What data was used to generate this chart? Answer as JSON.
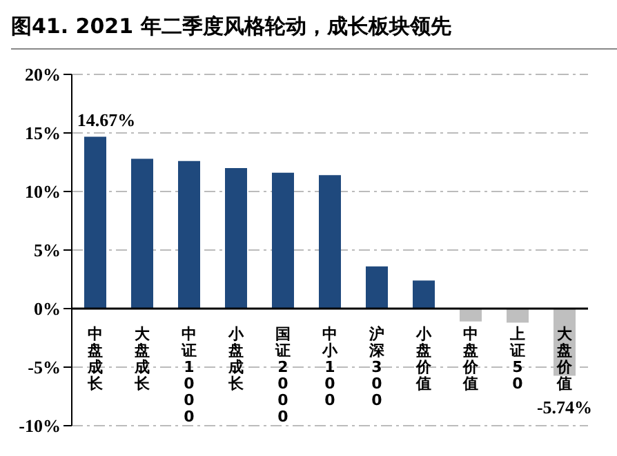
{
  "chart_data": {
    "type": "bar",
    "title": "图41. 2021 年二季度风格轮动，成长板块领先",
    "categories": [
      "中盘成长",
      "大盘成长",
      "中证1000",
      "小盘成长",
      "国证2000",
      "中小100",
      "沪深300",
      "小盘价值",
      "中盘价值",
      "上证50",
      "大盘价值"
    ],
    "values": [
      14.67,
      12.8,
      12.6,
      12.0,
      11.6,
      11.4,
      3.6,
      2.4,
      -1.1,
      -1.2,
      -5.74
    ],
    "colors": [
      "#1f497d",
      "#1f497d",
      "#1f497d",
      "#1f497d",
      "#1f497d",
      "#1f497d",
      "#1f497d",
      "#1f497d",
      "#bfbfbf",
      "#bfbfbf",
      "#bfbfbf"
    ],
    "value_labels": [
      "14.67%",
      null,
      null,
      null,
      null,
      null,
      null,
      null,
      null,
      null,
      "-5.74%"
    ],
    "ylim": [
      -10,
      20
    ],
    "yticks": [
      {
        "value": -10,
        "label": "-10%"
      },
      {
        "value": -5,
        "label": "-5%"
      },
      {
        "value": 0,
        "label": "0%"
      },
      {
        "value": 5,
        "label": "5%"
      },
      {
        "value": 10,
        "label": "10%"
      },
      {
        "value": 15,
        "label": "15%"
      },
      {
        "value": 20,
        "label": "20%"
      }
    ],
    "grid": "y",
    "legend": false
  }
}
